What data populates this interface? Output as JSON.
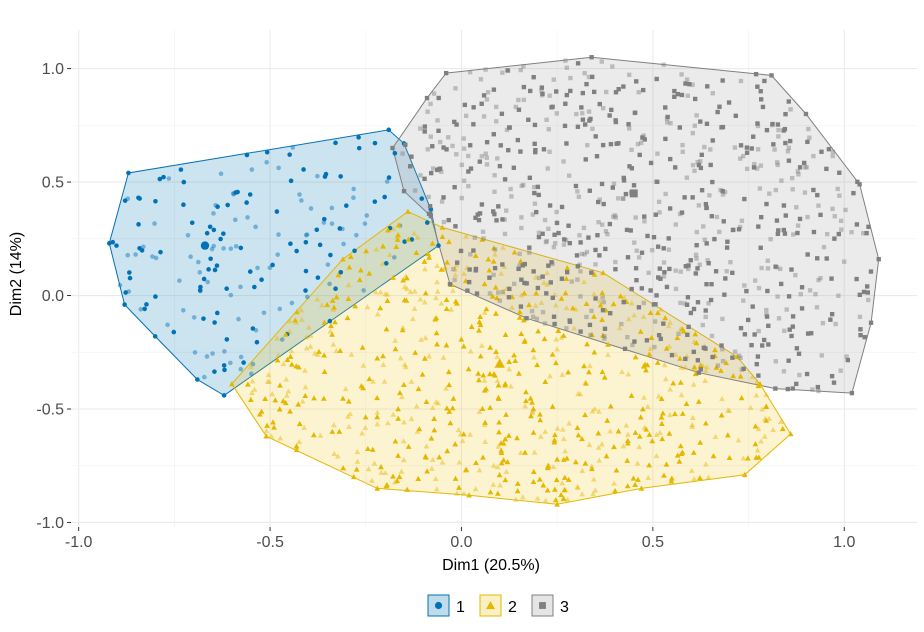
{
  "chart_data": {
    "type": "scatter",
    "xlabel": "Dim1 (20.5%)",
    "ylabel": "Dim2 (14%)",
    "xlim": [
      -1.02,
      1.19
    ],
    "ylim": [
      -1.02,
      1.17
    ],
    "x_ticks": [
      -1.0,
      -0.5,
      0.0,
      0.5,
      1.0
    ],
    "x_tick_labels": [
      "-1.0",
      "-0.5",
      "0.0",
      "0.5",
      "1.0"
    ],
    "y_ticks": [
      -1.0,
      -0.5,
      0.0,
      0.5,
      1.0
    ],
    "y_tick_labels": [
      "-1.0",
      "-0.5",
      "0.0",
      "0.5",
      "1.0"
    ],
    "grid": true,
    "legend_position": "bottom",
    "series": [
      {
        "name": "1",
        "marker": "circle",
        "color": "#0072B5",
        "fill": "#0072B5",
        "hull": [
          [
            -0.92,
            0.23
          ],
          [
            -0.87,
            0.54
          ],
          [
            -0.19,
            0.73
          ],
          [
            -0.15,
            0.67
          ],
          [
            -0.08,
            0.38
          ],
          [
            -0.06,
            0.22
          ],
          [
            -0.62,
            -0.44
          ],
          [
            -0.69,
            -0.37
          ],
          [
            -0.8,
            -0.18
          ],
          [
            -0.88,
            -0.04
          ]
        ],
        "center": [
          -0.67,
          0.22
        ],
        "n_points": 180,
        "seed": 11
      },
      {
        "name": "2",
        "marker": "triangle",
        "color": "#E5B800",
        "fill": "#F0C419",
        "hull": [
          [
            -0.6,
            -0.39
          ],
          [
            -0.31,
            0.16
          ],
          [
            -0.14,
            0.37
          ],
          [
            -0.05,
            0.3
          ],
          [
            0.37,
            0.1
          ],
          [
            0.72,
            -0.27
          ],
          [
            0.78,
            -0.39
          ],
          [
            0.86,
            -0.61
          ],
          [
            0.74,
            -0.79
          ],
          [
            0.47,
            -0.85
          ],
          [
            0.25,
            -0.92
          ],
          [
            0.02,
            -0.88
          ],
          [
            -0.22,
            -0.85
          ],
          [
            -0.51,
            -0.62
          ]
        ],
        "center": [
          0.1,
          -0.3
        ],
        "n_points": 700,
        "seed": 23
      },
      {
        "name": "3",
        "marker": "square",
        "color": "#808080",
        "fill": "#999999",
        "hull": [
          [
            -0.18,
            0.65
          ],
          [
            -0.09,
            0.87
          ],
          [
            -0.04,
            0.98
          ],
          [
            0.34,
            1.05
          ],
          [
            0.81,
            0.97
          ],
          [
            0.9,
            0.8
          ],
          [
            1.04,
            0.49
          ],
          [
            1.09,
            0.16
          ],
          [
            1.07,
            -0.12
          ],
          [
            1.02,
            -0.43
          ],
          [
            0.82,
            -0.41
          ],
          [
            0.62,
            -0.34
          ],
          [
            0.17,
            -0.1
          ],
          [
            -0.03,
            0.05
          ],
          [
            -0.08,
            0.35
          ],
          [
            -0.15,
            0.46
          ]
        ],
        "center": [
          0.45,
          0.45
        ],
        "n_points": 750,
        "seed": 37
      }
    ]
  }
}
